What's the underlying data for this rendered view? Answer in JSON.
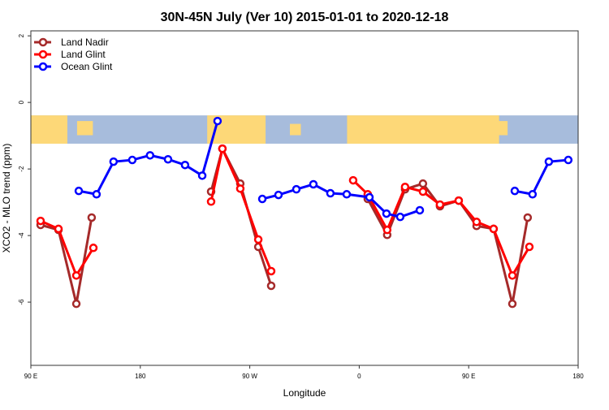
{
  "chart_data": {
    "type": "line",
    "title": "30N-45N July (Ver 10)   2015-01-01 to 2020-12-18",
    "xlabel": "Longitude",
    "ylabel": "XCO2 - MLO trend (ppm)",
    "xlim": [
      90,
      540
    ],
    "ylim": [
      -7.9,
      2.15
    ],
    "x_note": "continuous longitude degrees east, 90E..180..90W(270)..0(360)..90E(450)..180(540)",
    "xticks": [
      {
        "value": 90,
        "label": "90 E"
      },
      {
        "value": 180,
        "label": "180"
      },
      {
        "value": 270,
        "label": "90 W"
      },
      {
        "value": 360,
        "label": "0"
      },
      {
        "value": 450,
        "label": "90 E"
      },
      {
        "value": 540,
        "label": "180"
      }
    ],
    "yticks": [
      {
        "value": 2,
        "label": "2"
      },
      {
        "value": 0,
        "label": "0"
      },
      {
        "value": -2,
        "label": "-2"
      },
      {
        "value": -4,
        "label": "-4"
      },
      {
        "value": -6,
        "label": "-6"
      }
    ],
    "legend_position": "top-left",
    "map_strip": {
      "value_top": -0.39,
      "value_bottom": -1.24,
      "ocean_color": "#a7bcdc",
      "land_color": "#fdd878"
    },
    "series": [
      {
        "name": "Land Nadir",
        "color": "#a52a2a",
        "segments": [
          [
            [
              98,
              -3.68
            ],
            [
              112.7,
              -3.83
            ],
            [
              127.4,
              -6.05
            ],
            [
              140,
              -3.46
            ]
          ],
          [
            [
              238.2,
              -2.68
            ],
            [
              247.5,
              -1.39
            ],
            [
              262.2,
              -2.44
            ],
            [
              277,
              -4.34
            ],
            [
              287.6,
              -5.51
            ]
          ],
          [
            [
              367,
              -2.9
            ],
            [
              383,
              -3.98
            ],
            [
              397.7,
              -2.61
            ],
            [
              412.4,
              -2.44
            ],
            [
              426.4,
              -3.12
            ],
            [
              441.8,
              -2.95
            ],
            [
              456.5,
              -3.71
            ],
            [
              470.5,
              -3.8
            ],
            [
              485.9,
              -6.05
            ],
            [
              498.5,
              -3.46
            ]
          ]
        ]
      },
      {
        "name": "Land Glint",
        "color": "#ff0000",
        "segments": [
          [
            [
              98,
              -3.56
            ],
            [
              112.7,
              -3.8
            ],
            [
              127.4,
              -5.2
            ],
            [
              141.4,
              -4.37
            ]
          ],
          [
            [
              238.2,
              -2.98
            ],
            [
              247.5,
              -1.39
            ],
            [
              262.2,
              -2.59
            ],
            [
              277,
              -4.12
            ],
            [
              287.6,
              -5.07
            ]
          ],
          [
            [
              355,
              -2.34
            ],
            [
              367,
              -2.76
            ],
            [
              383,
              -3.83
            ],
            [
              397.7,
              -2.54
            ],
            [
              412.4,
              -2.68
            ],
            [
              426.4,
              -3.07
            ],
            [
              441.8,
              -2.95
            ],
            [
              456.5,
              -3.59
            ],
            [
              470.5,
              -3.8
            ],
            [
              485.9,
              -5.2
            ],
            [
              499.9,
              -4.34
            ]
          ]
        ]
      },
      {
        "name": "Ocean Glint",
        "color": "#0000ff",
        "segments": [
          [
            [
              129.4,
              -2.66
            ],
            [
              144,
              -2.76
            ],
            [
              158,
              -1.78
            ],
            [
              173.4,
              -1.73
            ],
            [
              188,
              -1.59
            ],
            [
              202.8,
              -1.71
            ],
            [
              216.8,
              -1.88
            ],
            [
              230.9,
              -2.2
            ],
            [
              243.5,
              -0.56
            ]
          ],
          [
            [
              280.3,
              -2.9
            ],
            [
              293.6,
              -2.78
            ],
            [
              308.3,
              -2.61
            ],
            [
              322.3,
              -2.46
            ],
            [
              336.3,
              -2.73
            ],
            [
              349.7,
              -2.76
            ],
            [
              368.4,
              -2.85
            ],
            [
              382.4,
              -3.34
            ],
            [
              393.7,
              -3.44
            ],
            [
              409.8,
              -3.24
            ]
          ],
          [
            [
              487.9,
              -2.66
            ],
            [
              502.5,
              -2.76
            ],
            [
              515.9,
              -1.78
            ],
            [
              531.9,
              -1.73
            ]
          ]
        ]
      }
    ]
  }
}
